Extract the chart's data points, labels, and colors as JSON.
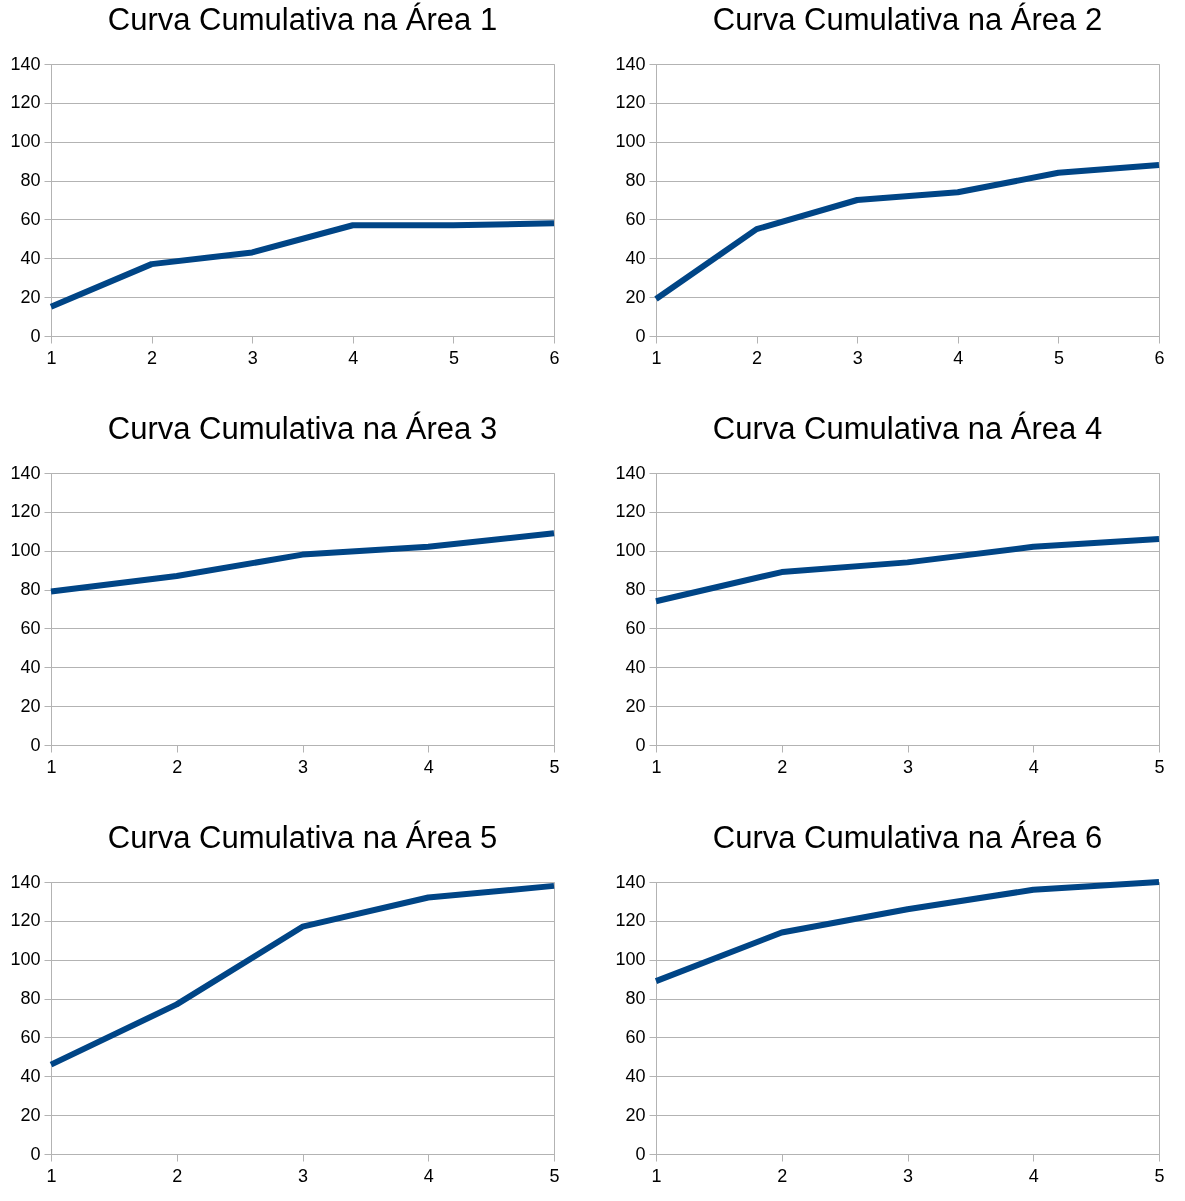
{
  "chart_data": [
    {
      "type": "line",
      "title": "Curva Cumulativa na Área 1",
      "x": [
        1,
        2,
        3,
        4,
        5,
        6
      ],
      "values": [
        15,
        37,
        43,
        57,
        57,
        58
      ],
      "color": "#004586",
      "xlim": [
        1,
        6
      ],
      "xticks": [
        1,
        2,
        3,
        4,
        5,
        6
      ],
      "ylim": [
        0,
        140
      ],
      "yticks": [
        0,
        20,
        40,
        60,
        80,
        100,
        120,
        140
      ],
      "grid": "y"
    },
    {
      "type": "line",
      "title": "Curva Cumulativa na Área 2",
      "x": [
        1,
        2,
        3,
        4,
        5,
        6
      ],
      "values": [
        19,
        55,
        70,
        74,
        84,
        88
      ],
      "color": "#004586",
      "xlim": [
        1,
        6
      ],
      "xticks": [
        1,
        2,
        3,
        4,
        5,
        6
      ],
      "ylim": [
        0,
        140
      ],
      "yticks": [
        0,
        20,
        40,
        60,
        80,
        100,
        120,
        140
      ],
      "grid": "y"
    },
    {
      "type": "line",
      "title": "Curva Cumulativa na Área 3",
      "x": [
        1,
        2,
        3,
        4,
        5
      ],
      "values": [
        79,
        87,
        98,
        102,
        109
      ],
      "color": "#004586",
      "xlim": [
        1,
        5
      ],
      "xticks": [
        1,
        2,
        3,
        4,
        5
      ],
      "ylim": [
        0,
        140
      ],
      "yticks": [
        0,
        20,
        40,
        60,
        80,
        100,
        120,
        140
      ],
      "grid": "y"
    },
    {
      "type": "line",
      "title": "Curva Cumulativa na Área 4",
      "x": [
        1,
        2,
        3,
        4,
        5
      ],
      "values": [
        74,
        89,
        94,
        102,
        106
      ],
      "color": "#004586",
      "xlim": [
        1,
        5
      ],
      "xticks": [
        1,
        2,
        3,
        4,
        5
      ],
      "ylim": [
        0,
        140
      ],
      "yticks": [
        0,
        20,
        40,
        60,
        80,
        100,
        120,
        140
      ],
      "grid": "y"
    },
    {
      "type": "line",
      "title": "Curva Cumulativa na Área 5",
      "x": [
        1,
        2,
        3,
        4,
        5
      ],
      "values": [
        46,
        77,
        117,
        132,
        138
      ],
      "color": "#004586",
      "xlim": [
        1,
        5
      ],
      "xticks": [
        1,
        2,
        3,
        4,
        5
      ],
      "ylim": [
        0,
        140
      ],
      "yticks": [
        0,
        20,
        40,
        60,
        80,
        100,
        120,
        140
      ],
      "grid": "y"
    },
    {
      "type": "line",
      "title": "Curva Cumulativa na Área 6",
      "x": [
        1,
        2,
        3,
        4,
        5
      ],
      "values": [
        89,
        114,
        126,
        136,
        140
      ],
      "color": "#004586",
      "xlim": [
        1,
        5
      ],
      "xticks": [
        1,
        2,
        3,
        4,
        5
      ],
      "ylim": [
        0,
        140
      ],
      "yticks": [
        0,
        20,
        40,
        60,
        80,
        100,
        120,
        140
      ],
      "grid": "y"
    }
  ]
}
